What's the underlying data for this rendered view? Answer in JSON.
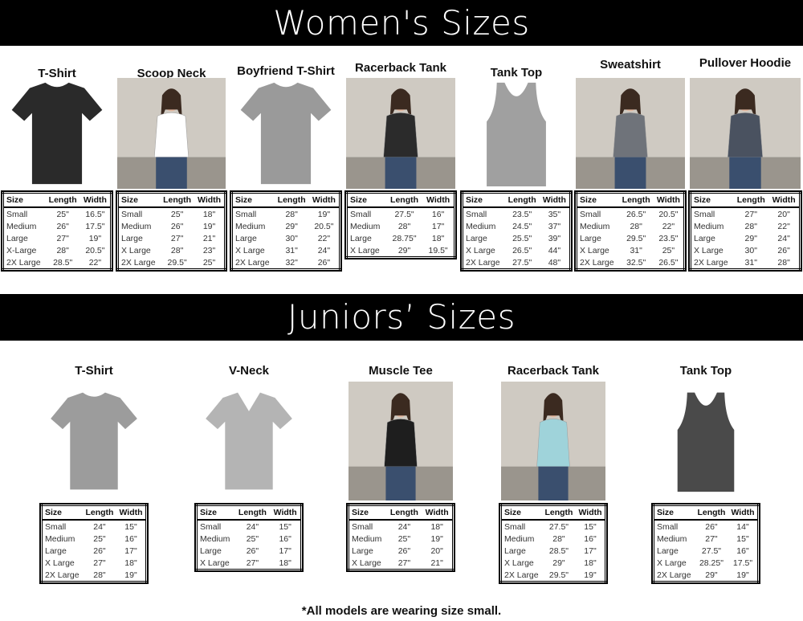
{
  "women": {
    "heading": "Women's Sizes",
    "products": [
      {
        "title": "T-Shirt",
        "image": "shirt",
        "color": "#2a2a2a",
        "headers": [
          "Size",
          "Length",
          "Width"
        ],
        "rows": [
          [
            "Small",
            "25\"",
            "16.5\""
          ],
          [
            "Medium",
            "26\"",
            "17.5\""
          ],
          [
            "Large",
            "27\"",
            "19\""
          ],
          [
            "X-Large",
            "28\"",
            "20.5\""
          ],
          [
            "2X Large",
            "28.5\"",
            "22\""
          ]
        ]
      },
      {
        "title": "Scoop Neck",
        "image": "photo",
        "color": "#ffffff",
        "headers": [
          "Size",
          "Length",
          "Width"
        ],
        "rows": [
          [
            "Small",
            "25\"",
            "18\""
          ],
          [
            "Medium",
            "26\"",
            "19\""
          ],
          [
            "Large",
            "27\"",
            "21\""
          ],
          [
            "X Large",
            "28\"",
            "23\""
          ],
          [
            "2X Large",
            "29.5\"",
            "25\""
          ]
        ]
      },
      {
        "title": "Boyfriend T-Shirt",
        "image": "shirt",
        "color": "#9a9a9a",
        "headers": [
          "Size",
          "Length",
          "Width"
        ],
        "rows": [
          [
            "Small",
            "28\"",
            "19\""
          ],
          [
            "Medium",
            "29\"",
            "20.5\""
          ],
          [
            "Large",
            "30\"",
            "22\""
          ],
          [
            "X Large",
            "31\"",
            "24\""
          ],
          [
            "2X Large",
            "32\"",
            "26\""
          ]
        ]
      },
      {
        "title": "Racerback Tank",
        "image": "photo",
        "color": "#2b2b2b",
        "headers": [
          "Size",
          "Length",
          "Width"
        ],
        "rows": [
          [
            "Small",
            "27.5\"",
            "16\""
          ],
          [
            "Medium",
            "28\"",
            "17\""
          ],
          [
            "Large",
            "28.75\"",
            "18\""
          ],
          [
            "X Large",
            "29\"",
            "19.5\""
          ]
        ]
      },
      {
        "title": "Tank Top",
        "image": "tank",
        "color": "#a0a0a0",
        "headers": [
          "Size",
          "Length",
          "Width"
        ],
        "rows": [
          [
            "Small",
            "23.5\"",
            "35\""
          ],
          [
            "Medium",
            "24.5\"",
            "37\""
          ],
          [
            "Large",
            "25.5\"",
            "39\""
          ],
          [
            "X Large",
            "26.5\"",
            "44\""
          ],
          [
            "2X Large",
            "27.5\"",
            "48\""
          ]
        ]
      },
      {
        "title": "Sweatshirt",
        "image": "photo",
        "color": "#6f737a",
        "headers": [
          "Size",
          "Length",
          "Width"
        ],
        "rows": [
          [
            "Small",
            "26.5\"",
            "20.5\""
          ],
          [
            "Medium",
            "28\"",
            "22\""
          ],
          [
            "Large",
            "29.5\"",
            "23.5\""
          ],
          [
            "X Large",
            "31\"",
            "25\""
          ],
          [
            "2X Large",
            "32.5\"",
            "26.5\""
          ]
        ]
      },
      {
        "title": "Pullover Hoodie",
        "image": "photo",
        "color": "#4a5260",
        "headers": [
          "Size",
          "Length",
          "Width"
        ],
        "rows": [
          [
            "Small",
            "27\"",
            "20\""
          ],
          [
            "Medium",
            "28\"",
            "22\""
          ],
          [
            "Large",
            "29\"",
            "24\""
          ],
          [
            "X Large",
            "30\"",
            "26\""
          ],
          [
            "2X Large",
            "31\"",
            "28\""
          ]
        ]
      }
    ]
  },
  "juniors": {
    "heading": "Juniors’ Sizes",
    "products": [
      {
        "title": "T-Shirt",
        "image": "shirt",
        "color": "#9c9c9c",
        "headers": [
          "Size",
          "Length",
          "Width"
        ],
        "rows": [
          [
            "Small",
            "24\"",
            "15\""
          ],
          [
            "Medium",
            "25\"",
            "16\""
          ],
          [
            "Large",
            "26\"",
            "17\""
          ],
          [
            "X Large",
            "27\"",
            "18\""
          ],
          [
            "2X Large",
            "28\"",
            "19\""
          ]
        ]
      },
      {
        "title": "V-Neck",
        "image": "vneck",
        "color": "#b4b4b4",
        "headers": [
          "Size",
          "Length",
          "Width"
        ],
        "rows": [
          [
            "Small",
            "24\"",
            "15\""
          ],
          [
            "Medium",
            "25\"",
            "16\""
          ],
          [
            "Large",
            "26\"",
            "17\""
          ],
          [
            "X Large",
            "27\"",
            "18\""
          ]
        ]
      },
      {
        "title": "Muscle Tee",
        "image": "photo",
        "color": "#1e1e1e",
        "headers": [
          "Size",
          "Length",
          "Width"
        ],
        "rows": [
          [
            "Small",
            "24\"",
            "18\""
          ],
          [
            "Medium",
            "25\"",
            "19\""
          ],
          [
            "Large",
            "26\"",
            "20\""
          ],
          [
            "X Large",
            "27\"",
            "21\""
          ]
        ]
      },
      {
        "title": "Racerback Tank",
        "image": "photo",
        "color": "#9fd3da",
        "headers": [
          "Size",
          "Length",
          "Width"
        ],
        "rows": [
          [
            "Small",
            "27.5\"",
            "15\""
          ],
          [
            "Medium",
            "28\"",
            "16\""
          ],
          [
            "Large",
            "28.5\"",
            "17\""
          ],
          [
            "X Large",
            "29\"",
            "18\""
          ],
          [
            "2X Large",
            "29.5\"",
            "19\""
          ]
        ]
      },
      {
        "title": "Tank Top",
        "image": "tank",
        "color": "#4a4a4a",
        "headers": [
          "Size",
          "Length",
          "Width"
        ],
        "rows": [
          [
            "Small",
            "26\"",
            "14\""
          ],
          [
            "Medium",
            "27\"",
            "15\""
          ],
          [
            "Large",
            "27.5\"",
            "16\""
          ],
          [
            "X Large",
            "28.25\"",
            "17.5\""
          ],
          [
            "2X Large",
            "29\"",
            "19\""
          ]
        ]
      }
    ]
  },
  "footer": "*All models are wearing size small."
}
